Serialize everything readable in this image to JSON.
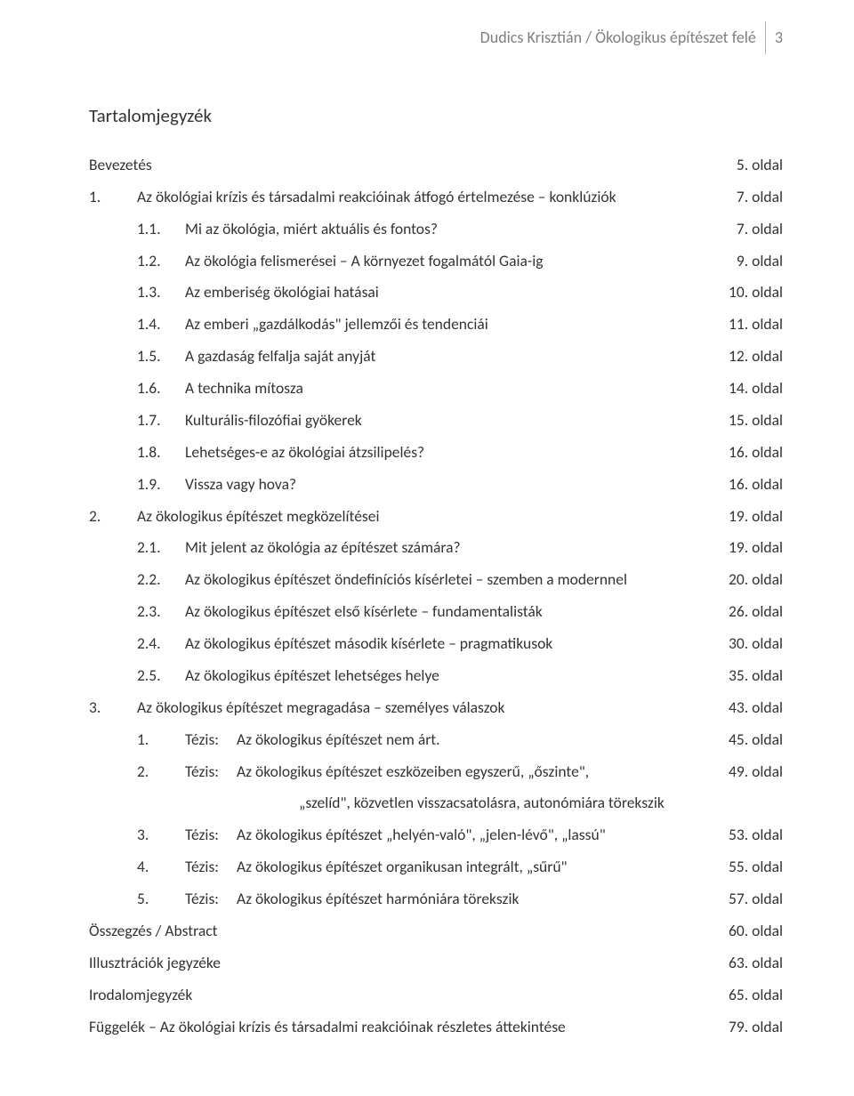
{
  "running_header": {
    "text": "Dudics Krisztián / Ökologikus építészet felé",
    "page_number": "3"
  },
  "toc_title": "Tartalomjegyzék",
  "tezis_label": "Tézis:",
  "entries": [
    {
      "level": 0,
      "num": "",
      "title": "Bevezetés",
      "page": "5. oldal",
      "noindent": true
    },
    {
      "level": 0,
      "num": "1.",
      "title": "Az ökológiai krízis és társadalmi reakcióinak átfogó értelmezése – konklúziók",
      "page": "7. oldal"
    },
    {
      "level": 1,
      "num": "1.1.",
      "title": "Mi az ökológia, miért aktuális és fontos?",
      "page": "7. oldal"
    },
    {
      "level": 1,
      "num": "1.2.",
      "title": "Az ökológia felismerései – A környezet fogalmától Gaia-ig",
      "page": "9. oldal"
    },
    {
      "level": 1,
      "num": "1.3.",
      "title": "Az emberiség ökológiai hatásai",
      "page": "10. oldal"
    },
    {
      "level": 1,
      "num": "1.4.",
      "title": "Az emberi „gazdálkodás\" jellemzői és tendenciái",
      "page": "11. oldal"
    },
    {
      "level": 1,
      "num": "1.5.",
      "title": "A gazdaság felfalja saját anyját",
      "page": "12. oldal"
    },
    {
      "level": 1,
      "num": "1.6.",
      "title": "A technika mítosza",
      "page": "14. oldal"
    },
    {
      "level": 1,
      "num": "1.7.",
      "title": "Kulturális-filozófiai gyökerek",
      "page": "15. oldal"
    },
    {
      "level": 1,
      "num": "1.8.",
      "title": "Lehetséges-e az ökológiai átzsilipelés?",
      "page": "16. oldal"
    },
    {
      "level": 1,
      "num": "1.9.",
      "title": "Vissza vagy hova?",
      "page": "16. oldal"
    },
    {
      "level": 0,
      "num": "2.",
      "title": "Az ökologikus építészet megközelítései",
      "page": "19. oldal"
    },
    {
      "level": 1,
      "num": "2.1.",
      "title": "Mit jelent az ökológia az építészet számára?",
      "page": "19. oldal"
    },
    {
      "level": 1,
      "num": "2.2.",
      "title": "Az ökologikus építészet öndefiníciós kísérletei – szemben a modernnel",
      "page": "20. oldal"
    },
    {
      "level": 1,
      "num": "2.3.",
      "title": "Az ökologikus építészet első kísérlete – fundamentalisták",
      "page": "26. oldal"
    },
    {
      "level": 1,
      "num": "2.4.",
      "title": "Az ökologikus építészet második kísérlete – pragmatikusok",
      "page": "30. oldal"
    },
    {
      "level": 1,
      "num": "2.5.",
      "title": "Az ökologikus építészet lehetséges helye",
      "page": "35. oldal"
    },
    {
      "level": 0,
      "num": "3.",
      "title": "Az ökologikus építészet megragadása – személyes válaszok",
      "page": "43. oldal"
    },
    {
      "level": 2,
      "num": "1.",
      "tezis": true,
      "title": "Az ökologikus építészet nem árt.",
      "page": "45. oldal"
    },
    {
      "level": 2,
      "num": "2.",
      "tezis": true,
      "title": "Az ökologikus építészet eszközeiben egyszerű, „őszinte\",",
      "page": "49. oldal"
    },
    {
      "level": 3,
      "num": "",
      "continuation": true,
      "title": "„szelíd\", közvetlen visszacsatolásra, autonómiára törekszik",
      "page": ""
    },
    {
      "level": 2,
      "num": "3.",
      "tezis": true,
      "title": "Az ökologikus építészet „helyén-való\", „jelen-lévő\", „lassú\"",
      "page": "53. oldal"
    },
    {
      "level": 2,
      "num": "4.",
      "tezis": true,
      "title": "Az ökologikus építészet organikusan integrált, „sűrű\"",
      "page": "55. oldal"
    },
    {
      "level": 2,
      "num": "5.",
      "tezis": true,
      "title": "Az ökologikus építészet harmóniára törekszik",
      "page": "57. oldal"
    },
    {
      "level": 0,
      "num": "",
      "title": "Összegzés / Abstract",
      "page": "60. oldal",
      "noindent": true
    },
    {
      "level": 0,
      "num": "",
      "title": "Illusztrációk jegyzéke",
      "page": "63. oldal",
      "noindent": true
    },
    {
      "level": 0,
      "num": "",
      "title": "Irodalomjegyzék",
      "page": "65. oldal",
      "noindent": true
    },
    {
      "level": 0,
      "num": "",
      "title": "Függelék – Az ökológiai krízis és társadalmi reakcióinak részletes áttekintése",
      "page": "79. oldal",
      "noindent": true
    }
  ]
}
